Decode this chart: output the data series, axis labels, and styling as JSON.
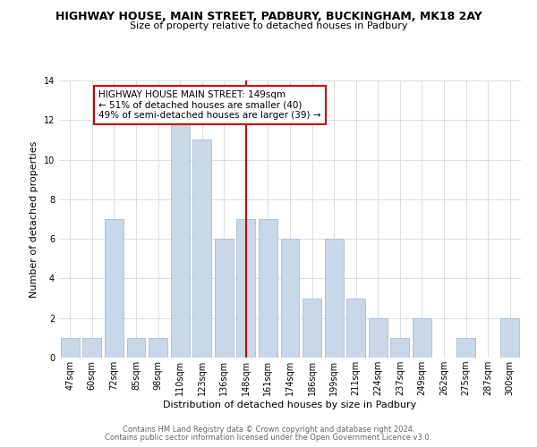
{
  "title": "HIGHWAY HOUSE, MAIN STREET, PADBURY, BUCKINGHAM, MK18 2AY",
  "subtitle": "Size of property relative to detached houses in Padbury",
  "xlabel": "Distribution of detached houses by size in Padbury",
  "ylabel": "Number of detached properties",
  "footer_line1": "Contains HM Land Registry data © Crown copyright and database right 2024.",
  "footer_line2": "Contains public sector information licensed under the Open Government Licence v3.0.",
  "bar_labels": [
    "47sqm",
    "60sqm",
    "72sqm",
    "85sqm",
    "98sqm",
    "110sqm",
    "123sqm",
    "136sqm",
    "148sqm",
    "161sqm",
    "174sqm",
    "186sqm",
    "199sqm",
    "211sqm",
    "224sqm",
    "237sqm",
    "249sqm",
    "262sqm",
    "275sqm",
    "287sqm",
    "300sqm"
  ],
  "bar_values": [
    1,
    1,
    7,
    1,
    1,
    12,
    11,
    6,
    7,
    7,
    6,
    3,
    6,
    3,
    2,
    1,
    2,
    0,
    1,
    0,
    2
  ],
  "bar_color": "#c8d8e8",
  "bar_edge_color": "#aabccc",
  "highlight_index": 8,
  "highlight_line_color": "#cc0000",
  "annotation_title": "HIGHWAY HOUSE MAIN STREET: 149sqm",
  "annotation_line1": "← 51% of detached houses are smaller (40)",
  "annotation_line2": "49% of semi-detached houses are larger (39) →",
  "annotation_box_color": "#ffffff",
  "annotation_box_edge": "#cc0000",
  "ylim": [
    0,
    14
  ],
  "yticks": [
    0,
    2,
    4,
    6,
    8,
    10,
    12,
    14
  ],
  "background_color": "#ffffff",
  "grid_color": "#dddddd",
  "title_fontsize": 9,
  "subtitle_fontsize": 8,
  "xlabel_fontsize": 8,
  "ylabel_fontsize": 8,
  "tick_fontsize": 7,
  "footer_fontsize": 6,
  "annotation_fontsize": 7.5
}
